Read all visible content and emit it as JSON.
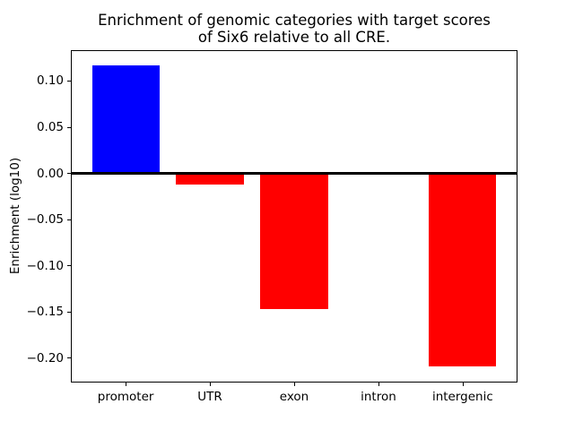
{
  "figure": {
    "background": "#ffffff"
  },
  "chart_data": {
    "type": "bar",
    "title": "Enrichment of genomic categories with target scores\nof Six6 relative to all CRE.",
    "xlabel": "",
    "ylabel": "Enrichment (log10)",
    "categories": [
      "promoter",
      "UTR",
      "exon",
      "intron",
      "intergenic"
    ],
    "values": [
      0.116,
      -0.013,
      -0.147,
      0.0,
      -0.21
    ],
    "bar_colors": [
      "#0000ff",
      "#ff0000",
      "#ff0000",
      "#ff0000",
      "#ff0000"
    ],
    "bar_width_fraction": 0.8,
    "ylim": [
      -0.226,
      0.132
    ],
    "xlim": [
      -0.64,
      4.64
    ],
    "yticks": [
      0.1,
      0.05,
      0.0,
      -0.05,
      -0.1,
      -0.15,
      -0.2
    ],
    "ytick_labels": [
      "0.10",
      "0.05",
      "0.00",
      "−0.05",
      "−0.10",
      "−0.15",
      "−0.20"
    ],
    "zero_line": true,
    "grid": false,
    "legend": null,
    "axis_color": "#000000",
    "text_color": "#000000"
  }
}
